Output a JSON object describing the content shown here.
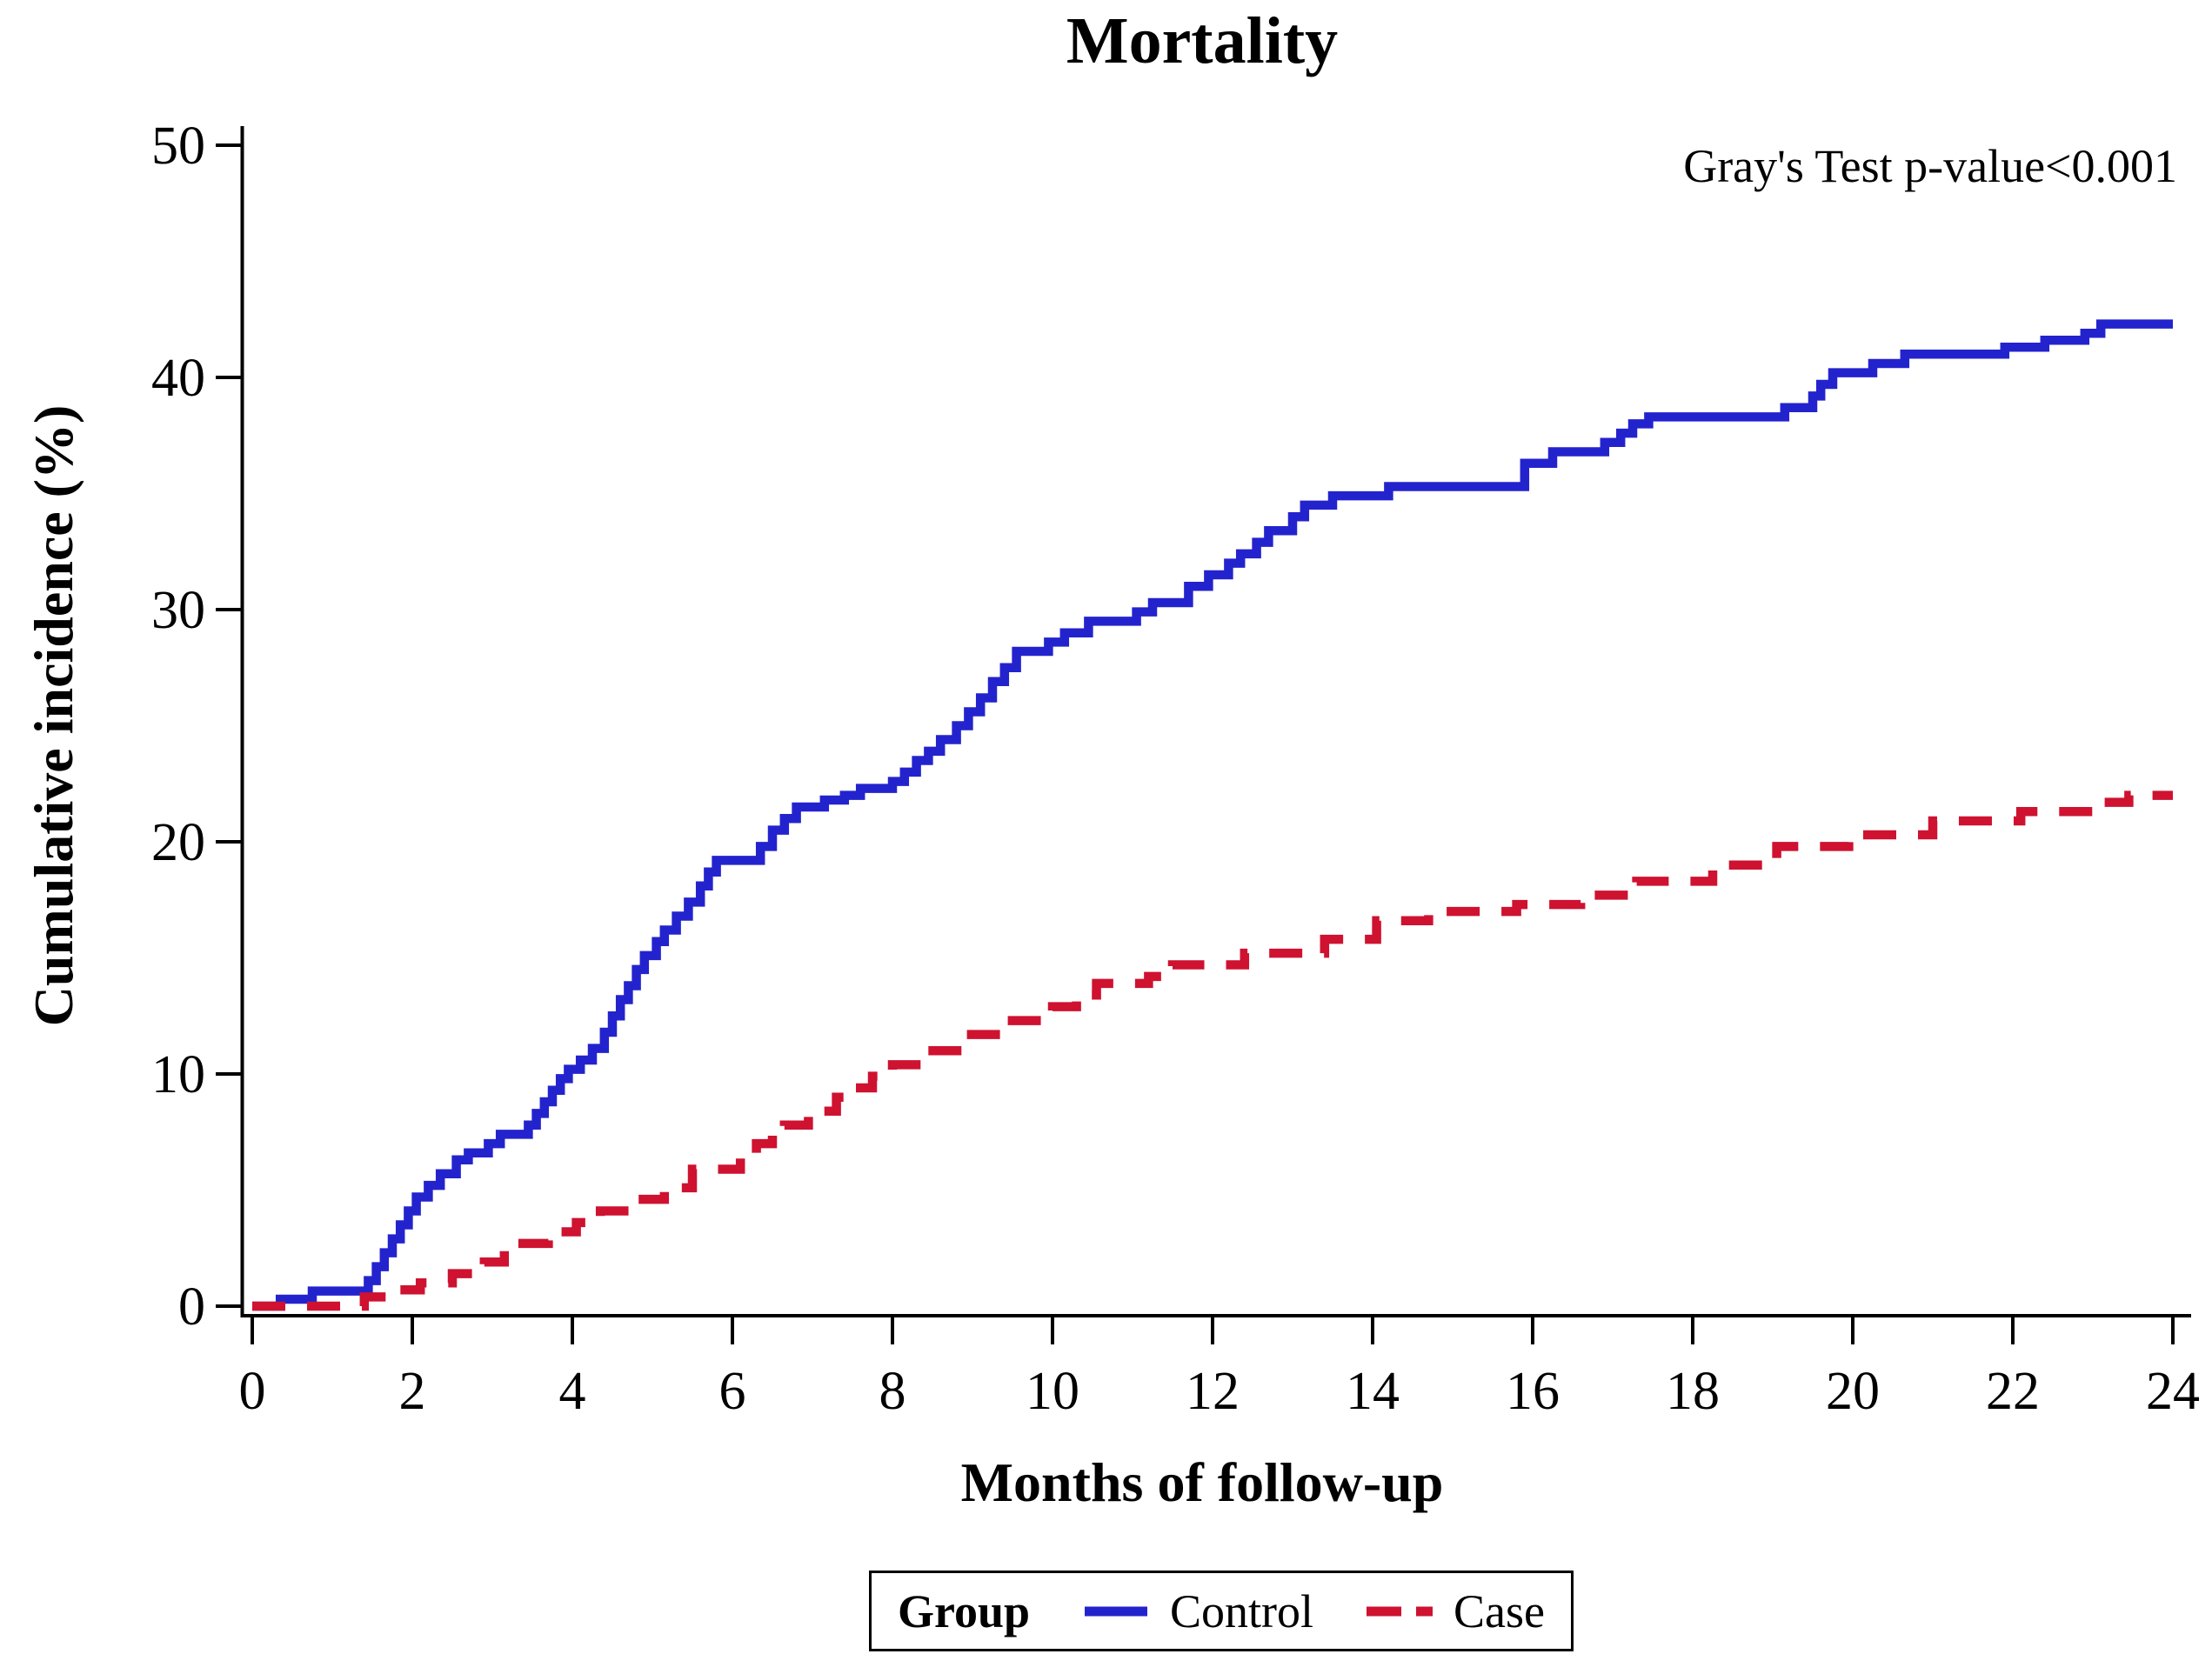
{
  "figure": {
    "title": "Mortality",
    "annotation": "Gray's Test p-value<0.001",
    "x_axis": {
      "label": "Months of follow-up",
      "min": 0,
      "max": 24,
      "ticks": [
        0,
        2,
        4,
        6,
        8,
        10,
        12,
        14,
        16,
        18,
        20,
        22,
        24
      ]
    },
    "y_axis": {
      "label": "Cumulative incidence (%)",
      "min": 0,
      "max": 50,
      "ticks": [
        0,
        10,
        20,
        30,
        40,
        50
      ]
    },
    "legend": {
      "title": "Group",
      "items": [
        {
          "label": "Control",
          "color": "#2323CE",
          "style": "solid"
        },
        {
          "label": "Case",
          "color": "#CE1230",
          "style": "dashed"
        }
      ]
    }
  },
  "chart_data": {
    "type": "line",
    "step": true,
    "title": "Mortality",
    "xlabel": "Months of follow-up",
    "ylabel": "Cumulative incidence (%)",
    "xlim": [
      0,
      24
    ],
    "ylim": [
      0,
      50
    ],
    "x_ticks": [
      0,
      2,
      4,
      6,
      8,
      10,
      12,
      14,
      16,
      18,
      20,
      22,
      24
    ],
    "y_ticks": [
      0,
      10,
      20,
      30,
      40,
      50
    ],
    "grid": false,
    "legend_position": "bottom",
    "annotation": "Gray's Test p-value<0.001",
    "series": [
      {
        "name": "Control",
        "color": "#2323CE",
        "style": "solid",
        "points": [
          [
            0,
            0
          ],
          [
            0.35,
            0.3
          ],
          [
            0.75,
            0.65
          ],
          [
            1.45,
            1.1
          ],
          [
            1.55,
            1.7
          ],
          [
            1.65,
            2.3
          ],
          [
            1.75,
            2.9
          ],
          [
            1.85,
            3.5
          ],
          [
            1.95,
            4.1
          ],
          [
            2.05,
            4.7
          ],
          [
            2.2,
            5.2
          ],
          [
            2.35,
            5.7
          ],
          [
            2.55,
            6.3
          ],
          [
            2.7,
            6.6
          ],
          [
            2.95,
            7.0
          ],
          [
            3.1,
            7.4
          ],
          [
            3.45,
            7.8
          ],
          [
            3.55,
            8.3
          ],
          [
            3.65,
            8.8
          ],
          [
            3.75,
            9.3
          ],
          [
            3.85,
            9.8
          ],
          [
            3.95,
            10.2
          ],
          [
            4.1,
            10.6
          ],
          [
            4.25,
            11.1
          ],
          [
            4.4,
            11.8
          ],
          [
            4.5,
            12.5
          ],
          [
            4.6,
            13.2
          ],
          [
            4.7,
            13.8
          ],
          [
            4.8,
            14.5
          ],
          [
            4.9,
            15.1
          ],
          [
            5.05,
            15.7
          ],
          [
            5.15,
            16.2
          ],
          [
            5.3,
            16.8
          ],
          [
            5.45,
            17.4
          ],
          [
            5.6,
            18.1
          ],
          [
            5.7,
            18.7
          ],
          [
            5.8,
            19.2
          ],
          [
            6.35,
            19.8
          ],
          [
            6.5,
            20.5
          ],
          [
            6.65,
            21.0
          ],
          [
            6.8,
            21.5
          ],
          [
            7.15,
            21.8
          ],
          [
            7.4,
            22.0
          ],
          [
            7.6,
            22.3
          ],
          [
            8.0,
            22.6
          ],
          [
            8.15,
            23.0
          ],
          [
            8.3,
            23.5
          ],
          [
            8.45,
            23.9
          ],
          [
            8.6,
            24.4
          ],
          [
            8.8,
            25.0
          ],
          [
            8.95,
            25.6
          ],
          [
            9.1,
            26.2
          ],
          [
            9.25,
            26.9
          ],
          [
            9.4,
            27.5
          ],
          [
            9.55,
            28.2
          ],
          [
            9.95,
            28.6
          ],
          [
            10.15,
            29.0
          ],
          [
            10.45,
            29.5
          ],
          [
            11.05,
            29.9
          ],
          [
            11.25,
            30.3
          ],
          [
            11.7,
            31.0
          ],
          [
            11.95,
            31.5
          ],
          [
            12.2,
            32.0
          ],
          [
            12.35,
            32.4
          ],
          [
            12.55,
            32.9
          ],
          [
            12.7,
            33.4
          ],
          [
            13.0,
            34.0
          ],
          [
            13.15,
            34.5
          ],
          [
            13.5,
            34.9
          ],
          [
            14.2,
            35.3
          ],
          [
            15.9,
            36.3
          ],
          [
            16.25,
            36.8
          ],
          [
            16.9,
            37.2
          ],
          [
            17.1,
            37.6
          ],
          [
            17.25,
            38.0
          ],
          [
            17.45,
            38.3
          ],
          [
            19.15,
            38.7
          ],
          [
            19.5,
            39.2
          ],
          [
            19.6,
            39.7
          ],
          [
            19.75,
            40.2
          ],
          [
            20.25,
            40.6
          ],
          [
            20.65,
            41.0
          ],
          [
            21.9,
            41.3
          ],
          [
            22.4,
            41.6
          ],
          [
            22.9,
            41.9
          ],
          [
            23.1,
            42.3
          ],
          [
            24,
            42.3
          ]
        ]
      },
      {
        "name": "Case",
        "color": "#CE1230",
        "style": "dashed",
        "points": [
          [
            0,
            0
          ],
          [
            1.4,
            0.4
          ],
          [
            1.8,
            0.7
          ],
          [
            2.1,
            1.0
          ],
          [
            2.5,
            1.4
          ],
          [
            2.9,
            1.9
          ],
          [
            3.15,
            2.7
          ],
          [
            3.7,
            3.2
          ],
          [
            4.05,
            3.6
          ],
          [
            4.35,
            4.1
          ],
          [
            4.8,
            4.6
          ],
          [
            5.15,
            5.1
          ],
          [
            5.5,
            5.9
          ],
          [
            6.1,
            6.4
          ],
          [
            6.3,
            7.0
          ],
          [
            6.5,
            7.5
          ],
          [
            6.65,
            7.8
          ],
          [
            6.95,
            8.4
          ],
          [
            7.3,
            9.0
          ],
          [
            7.5,
            9.4
          ],
          [
            7.75,
            9.9
          ],
          [
            8.0,
            10.4
          ],
          [
            8.4,
            11.0
          ],
          [
            8.9,
            11.7
          ],
          [
            9.4,
            12.3
          ],
          [
            10.0,
            12.9
          ],
          [
            10.3,
            13.4
          ],
          [
            10.55,
            13.9
          ],
          [
            11.2,
            14.2
          ],
          [
            11.5,
            14.7
          ],
          [
            12.4,
            15.2
          ],
          [
            13.4,
            15.8
          ],
          [
            14.05,
            16.6
          ],
          [
            14.7,
            17.0
          ],
          [
            15.8,
            17.3
          ],
          [
            16.6,
            17.7
          ],
          [
            17.3,
            18.3
          ],
          [
            18.25,
            19.0
          ],
          [
            19.05,
            19.8
          ],
          [
            19.95,
            20.3
          ],
          [
            21.0,
            20.9
          ],
          [
            22.1,
            21.3
          ],
          [
            23.1,
            21.7
          ],
          [
            23.45,
            22.0
          ],
          [
            24,
            22.0
          ]
        ]
      }
    ]
  },
  "layout_colors": {
    "axis": "#000000",
    "background": "#ffffff"
  }
}
